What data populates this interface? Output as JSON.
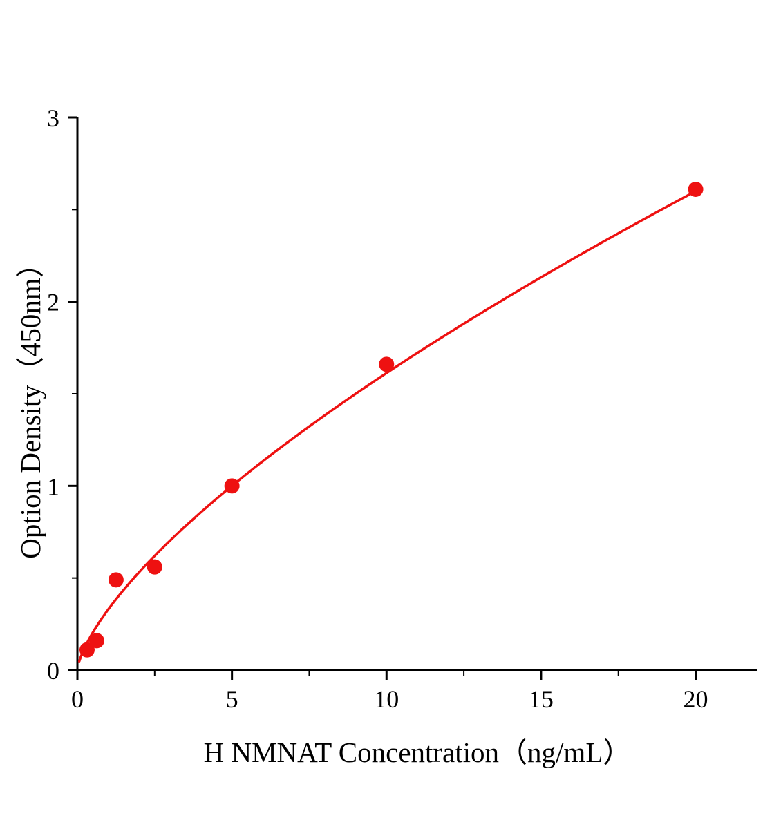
{
  "chart_data": {
    "type": "scatter",
    "title": "",
    "xlabel": "H NMNAT Concentration（ng/mL）",
    "ylabel": "Option Density（450nm）",
    "x": [
      0.3125,
      0.625,
      1.25,
      2.5,
      5,
      10,
      20
    ],
    "y": [
      0.11,
      0.16,
      0.49,
      0.56,
      1.0,
      1.66,
      2.61
    ],
    "xlim": [
      0,
      22
    ],
    "ylim": [
      0,
      3
    ],
    "xticks": [
      0,
      5,
      10,
      15,
      20
    ],
    "yticks": [
      0,
      1,
      2,
      3
    ],
    "x_minor_step": 2.5,
    "y_minor_step": 0.5,
    "grid": false,
    "legend": null,
    "point_color": "#ee1111",
    "curve_color": "#ee1111",
    "axis_color": "#000000",
    "curve_fit": {
      "type": "power",
      "a": 0.33,
      "b": 0.689,
      "x_start": 0.06,
      "x_end": 20
    }
  }
}
